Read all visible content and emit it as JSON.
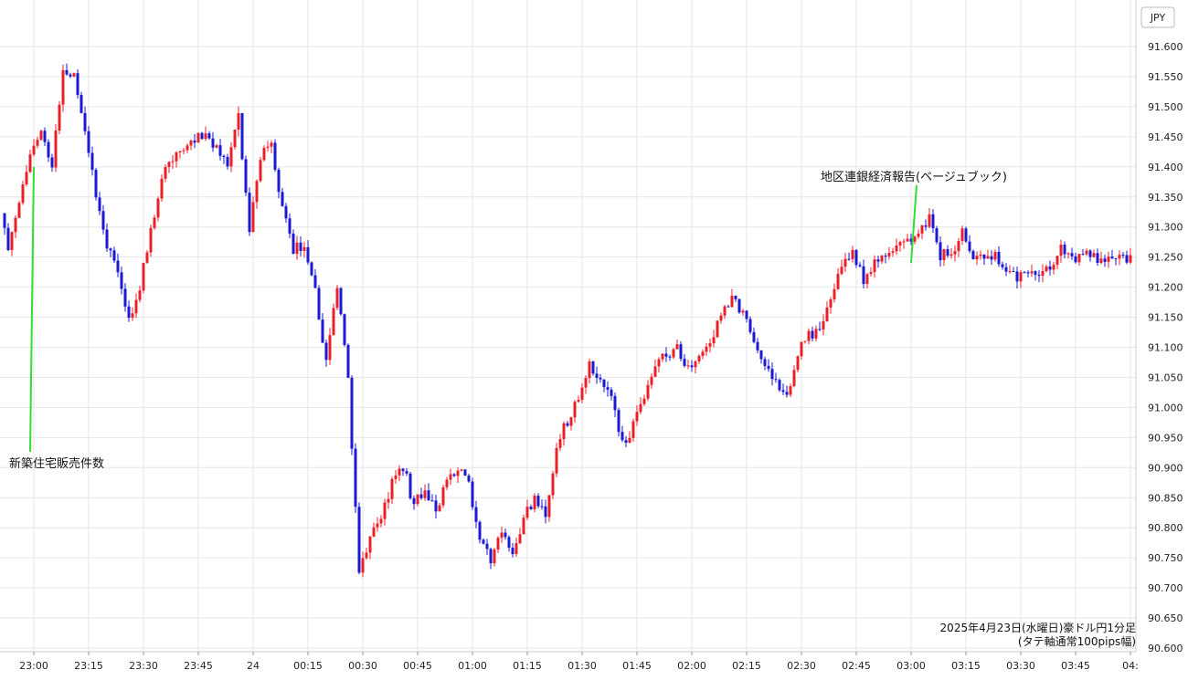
{
  "chart_data": {
    "type": "candlestick",
    "currency": "JPY",
    "ylim": [
      90.6,
      91.6
    ],
    "y_ticks": [
      "91.600",
      "91.550",
      "91.500",
      "91.450",
      "91.400",
      "91.350",
      "91.300",
      "91.250",
      "91.200",
      "91.150",
      "91.100",
      "91.050",
      "91.000",
      "90.950",
      "90.900",
      "90.850",
      "90.800",
      "90.750",
      "90.700",
      "90.650",
      "90.600"
    ],
    "x_ticks": [
      "23:00",
      "23:15",
      "23:30",
      "23:45",
      "24",
      "00:15",
      "00:30",
      "00:45",
      "01:00",
      "01:15",
      "01:30",
      "01:45",
      "02:00",
      "02:15",
      "02:30",
      "02:45",
      "03:00",
      "03:15",
      "03:30",
      "03:45",
      "04:"
    ],
    "grid": true,
    "up_color": "#e8202a",
    "down_color": "#1a1ad0",
    "annotation_color": "#33dd33",
    "annotations": [
      {
        "label": "新築住宅販売件数",
        "time": "23:00"
      },
      {
        "label": "地区連銀経済報告(ベージュブック)",
        "time": "03:00"
      }
    ],
    "note_line1": "2025年4月23日(水曜日)豪ドル円1分足",
    "note_line2": "(タテ軸通常100pips幅)",
    "price_path": [
      [
        0,
        91.36
      ],
      [
        1,
        91.26
      ],
      [
        2,
        91.33
      ],
      [
        3,
        91.42
      ],
      [
        4,
        91.47
      ],
      [
        5,
        91.4
      ],
      [
        6,
        91.56
      ],
      [
        7,
        91.55
      ],
      [
        8,
        91.45
      ],
      [
        9,
        91.36
      ],
      [
        10,
        91.27
      ],
      [
        11,
        91.22
      ],
      [
        12,
        91.14
      ],
      [
        13,
        91.2
      ],
      [
        14,
        91.3
      ],
      [
        15,
        91.38
      ],
      [
        16,
        91.42
      ],
      [
        17,
        91.43
      ],
      [
        18,
        91.45
      ],
      [
        19,
        91.46
      ],
      [
        20,
        91.43
      ],
      [
        21,
        91.4
      ],
      [
        22,
        91.48
      ],
      [
        23,
        91.3
      ],
      [
        24,
        91.42
      ],
      [
        25,
        91.43
      ],
      [
        26,
        91.33
      ],
      [
        27,
        91.26
      ],
      [
        28,
        91.27
      ],
      [
        29,
        91.19
      ],
      [
        30,
        91.08
      ],
      [
        31,
        91.2
      ],
      [
        32,
        91.05
      ],
      [
        33,
        90.72
      ],
      [
        34,
        90.78
      ],
      [
        35,
        90.82
      ],
      [
        36,
        90.87
      ],
      [
        37,
        90.9
      ],
      [
        38,
        90.84
      ],
      [
        39,
        90.86
      ],
      [
        40,
        90.83
      ],
      [
        41,
        90.87
      ],
      [
        42,
        90.9
      ],
      [
        43,
        90.88
      ],
      [
        44,
        90.77
      ],
      [
        45,
        90.75
      ],
      [
        46,
        90.79
      ],
      [
        47,
        90.76
      ],
      [
        48,
        90.82
      ],
      [
        49,
        90.85
      ],
      [
        50,
        90.82
      ],
      [
        51,
        90.94
      ],
      [
        52,
        90.98
      ],
      [
        53,
        91.02
      ],
      [
        54,
        91.07
      ],
      [
        55,
        91.04
      ],
      [
        56,
        91.03
      ],
      [
        57,
        90.94
      ],
      [
        58,
        90.97
      ],
      [
        59,
        91.02
      ],
      [
        60,
        91.06
      ],
      [
        61,
        91.09
      ],
      [
        62,
        91.1
      ],
      [
        63,
        91.07
      ],
      [
        64,
        91.09
      ],
      [
        65,
        91.11
      ],
      [
        66,
        91.16
      ],
      [
        67,
        91.18
      ],
      [
        68,
        91.15
      ],
      [
        69,
        91.11
      ],
      [
        70,
        91.08
      ],
      [
        71,
        91.04
      ],
      [
        72,
        91.02
      ],
      [
        73,
        91.09
      ],
      [
        74,
        91.12
      ],
      [
        75,
        91.13
      ],
      [
        76,
        91.19
      ],
      [
        77,
        91.23
      ],
      [
        78,
        91.26
      ],
      [
        79,
        91.21
      ],
      [
        80,
        91.24
      ],
      [
        81,
        91.26
      ],
      [
        82,
        91.27
      ],
      [
        83,
        91.29
      ],
      [
        84,
        91.28
      ],
      [
        85,
        91.32
      ],
      [
        86,
        91.25
      ],
      [
        87,
        91.26
      ],
      [
        88,
        91.29
      ],
      [
        89,
        91.25
      ],
      [
        90,
        91.24
      ],
      [
        91,
        91.25
      ],
      [
        92,
        91.23
      ],
      [
        93,
        91.21
      ],
      [
        94,
        91.23
      ],
      [
        95,
        91.22
      ],
      [
        96,
        91.24
      ],
      [
        97,
        91.26
      ],
      [
        98,
        91.25
      ]
    ],
    "path_step_minutes": 3
  }
}
